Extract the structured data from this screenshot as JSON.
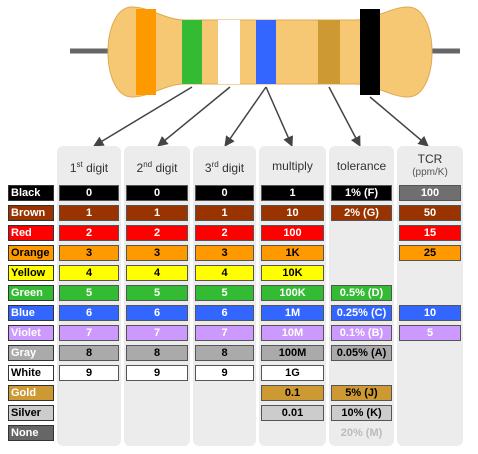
{
  "headers": {
    "d1_num": "1",
    "d1_sup": "st",
    "d1_text": "digit",
    "d2_num": "2",
    "d2_sup": "nd",
    "d2_text": "digit",
    "d3_num": "3",
    "d3_sup": "rd",
    "d3_text": "digit",
    "multiply": "multiply",
    "tolerance": "tolerance",
    "tcr": "TCR",
    "tcr_unit": "(ppm/K)"
  },
  "bands": [
    {
      "name": "Black",
      "label_bg": "#000000",
      "label_fg": "#ffffff",
      "d1": "0",
      "d2": "0",
      "d3": "0",
      "mult": "1",
      "tol": "1% (F)",
      "tcr": "100",
      "cell_bg": "#000000",
      "cell_fg": "#ffffff",
      "tcr_bg": "#6f6f6f",
      "tcr_fg": "#ffffff"
    },
    {
      "name": "Brown",
      "label_bg": "#993300",
      "label_fg": "#ffffff",
      "d1": "1",
      "d2": "1",
      "d3": "1",
      "mult": "10",
      "tol": "2% (G)",
      "tcr": "50",
      "cell_bg": "#993300",
      "cell_fg": "#ffffff",
      "tcr_bg": "#993300",
      "tcr_fg": "#ffffff"
    },
    {
      "name": "Red",
      "label_bg": "#ff0000",
      "label_fg": "#ffffff",
      "d1": "2",
      "d2": "2",
      "d3": "2",
      "mult": "100",
      "tol": "",
      "tcr": "15",
      "cell_bg": "#ff0000",
      "cell_fg": "#ffffff",
      "tcr_bg": "#ff0000",
      "tcr_fg": "#ffffff"
    },
    {
      "name": "Orange",
      "label_bg": "#ff9900",
      "label_fg": "#000000",
      "d1": "3",
      "d2": "3",
      "d3": "3",
      "mult": "1K",
      "tol": "",
      "tcr": "25",
      "cell_bg": "#ff9900",
      "cell_fg": "#000000",
      "tcr_bg": "#ff9900",
      "tcr_fg": "#000000"
    },
    {
      "name": "Yellow",
      "label_bg": "#ffff00",
      "label_fg": "#000000",
      "d1": "4",
      "d2": "4",
      "d3": "4",
      "mult": "10K",
      "tol": "",
      "tcr": "",
      "cell_bg": "#ffff00",
      "cell_fg": "#000000"
    },
    {
      "name": "Green",
      "label_bg": "#33bb33",
      "label_fg": "#ffffff",
      "d1": "5",
      "d2": "5",
      "d3": "5",
      "mult": "100K",
      "tol": "0.5% (D)",
      "tcr": "",
      "cell_bg": "#33bb33",
      "cell_fg": "#ffffff"
    },
    {
      "name": "Blue",
      "label_bg": "#3366ff",
      "label_fg": "#ffffff",
      "d1": "6",
      "d2": "6",
      "d3": "6",
      "mult": "1M",
      "tol": "0.25% (C)",
      "tcr": "10",
      "cell_bg": "#3366ff",
      "cell_fg": "#ffffff",
      "tcr_bg": "#3366ff",
      "tcr_fg": "#ffffff"
    },
    {
      "name": "Violet",
      "label_bg": "#cc99ff",
      "label_fg": "#ffffff",
      "d1": "7",
      "d2": "7",
      "d3": "7",
      "mult": "10M",
      "tol": "0.1% (B)",
      "tcr": "5",
      "cell_bg": "#cc99ff",
      "cell_fg": "#ffffff",
      "tcr_bg": "#cc99ff",
      "tcr_fg": "#ffffff"
    },
    {
      "name": "Gray",
      "label_bg": "#aaaaaa",
      "label_fg": "#ffffff",
      "d1": "8",
      "d2": "8",
      "d3": "8",
      "mult": "100M",
      "tol": "0.05% (A)",
      "tcr": "",
      "cell_bg": "#aaaaaa",
      "cell_fg": "#000000"
    },
    {
      "name": "White",
      "label_bg": "#ffffff",
      "label_fg": "#000000",
      "d1": "9",
      "d2": "9",
      "d3": "9",
      "mult": "1G",
      "tol": "",
      "tcr": "",
      "cell_bg": "#ffffff",
      "cell_fg": "#000000"
    },
    {
      "name": "Gold",
      "label_bg": "#cc9933",
      "label_fg": "#ffffff",
      "d1": "",
      "d2": "",
      "d3": "",
      "mult": "0.1",
      "tol": "5% (J)",
      "tcr": "",
      "cell_bg": "#cc9933",
      "cell_fg": "#000000"
    },
    {
      "name": "Silver",
      "label_bg": "#cccccc",
      "label_fg": "#000000",
      "d1": "",
      "d2": "",
      "d3": "",
      "mult": "0.01",
      "tol": "10% (K)",
      "tcr": "",
      "cell_bg": "#cccccc",
      "cell_fg": "#000000"
    },
    {
      "name": "None",
      "label_bg": "#666666",
      "label_fg": "#ffffff",
      "d1": "",
      "d2": "",
      "d3": "",
      "mult": "",
      "tol": "20% (M)",
      "tcr": "",
      "cell_bg": "#ececec",
      "cell_fg": "#bbbbbb"
    }
  ],
  "resistor": {
    "body_color": "#f6c873",
    "lead_color": "#666666",
    "band_colors": [
      "#ff9900",
      "#33bb33",
      "#ffffff",
      "#3366ff",
      "#cc9933",
      "#000000"
    ]
  }
}
